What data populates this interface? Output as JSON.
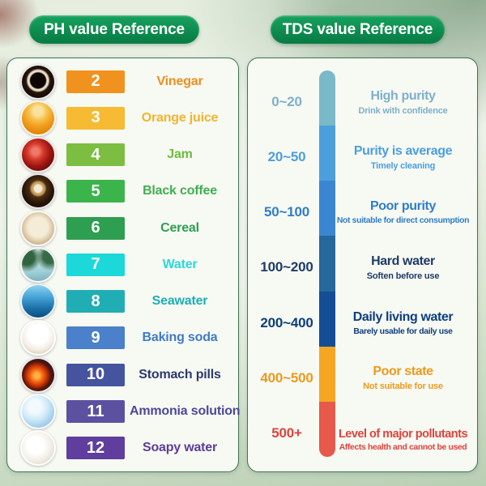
{
  "page": {
    "pill_top_color": "#17a25e",
    "pill_bottom_color": "#077a43"
  },
  "left_panel": {
    "title": "PH value Reference",
    "rows": [
      {
        "ph": "2",
        "label": "Vinegar",
        "badge_color": "#f0921e",
        "text_color": "#ee8e1e",
        "icon": "vinegar"
      },
      {
        "ph": "3",
        "label": "Orange juice",
        "badge_color": "#f6ba33",
        "text_color": "#f2b42c",
        "icon": "orange-juice"
      },
      {
        "ph": "4",
        "label": "Jam",
        "badge_color": "#7cbe41",
        "text_color": "#6cbe3c",
        "icon": "jam"
      },
      {
        "ph": "5",
        "label": "Black coffee",
        "badge_color": "#3cb44c",
        "text_color": "#42ae50",
        "icon": "black-coffee"
      },
      {
        "ph": "6",
        "label": "Cereal",
        "badge_color": "#2e9e51",
        "text_color": "#2e9e52",
        "icon": "cereal"
      },
      {
        "ph": "7",
        "label": "Water",
        "badge_color": "#1cd8d8",
        "text_color": "#2bd9d5",
        "icon": "water"
      },
      {
        "ph": "8",
        "label": "Seawater",
        "badge_color": "#20aeb4",
        "text_color": "#1faeb4",
        "icon": "seawater"
      },
      {
        "ph": "9",
        "label": "Baking soda",
        "badge_color": "#4b80ca",
        "text_color": "#3e7cc8",
        "icon": "baking-soda"
      },
      {
        "ph": "10",
        "label": "Stomach pills",
        "badge_color": "#44549e",
        "text_color": "#2b3a6e",
        "icon": "stomach-pills"
      },
      {
        "ph": "11",
        "label": "Ammonia solution",
        "badge_color": "#5b51a0",
        "text_color": "#4b4898",
        "icon": "ammonia-solution"
      },
      {
        "ph": "12",
        "label": "Soapy water",
        "badge_color": "#5f3e9e",
        "text_color": "#5c3d97",
        "icon": "soapy-water"
      }
    ]
  },
  "right_panel": {
    "title": "TDS value Reference",
    "bands": [
      {
        "range": "0~20",
        "title": "High purity",
        "subtitle": "Drink with confidence",
        "bar_color": "#79b9c8",
        "text_color": "#7eb0cc"
      },
      {
        "range": "20~50",
        "title": "Purity is average",
        "subtitle": "Timely cleaning",
        "bar_color": "#4c9fdd",
        "text_color": "#4c9fdd"
      },
      {
        "range": "50~100",
        "title": "Poor purity",
        "subtitle": "Not suitable for direct consumption",
        "bar_color": "#3a86d2",
        "text_color": "#2f7ec7"
      },
      {
        "range": "100~200",
        "title": "Hard water",
        "subtitle": "Soften before use",
        "bar_color": "#25689c",
        "text_color": "#1e3c66"
      },
      {
        "range": "200~400",
        "title": "Daily living water",
        "subtitle": "Barely usable for daily use",
        "bar_color": "#134e97",
        "text_color": "#0e3e7e"
      },
      {
        "range": "400~500",
        "title": "Poor state",
        "subtitle": "Not suitable for use",
        "bar_color": "#f5a623",
        "text_color": "#ec9a1c"
      },
      {
        "range": "500+",
        "title": "Level of major pollutants",
        "subtitle": "Affects health and cannot be used",
        "bar_color": "#e6594b",
        "text_color": "#dc443c"
      }
    ]
  }
}
